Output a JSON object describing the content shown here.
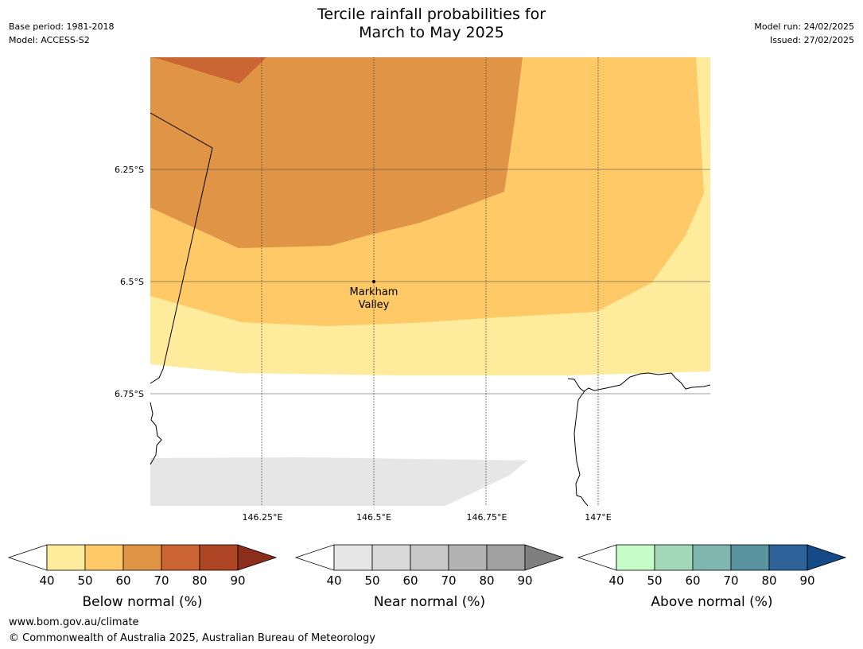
{
  "header": {
    "title_line1": "Tercile rainfall probabilities for",
    "title_line2": "March to May 2025",
    "base_period": "Base period: 1981-2018",
    "model": "Model: ACCESS-S2",
    "model_run": "Model run: 24/02/2025",
    "issued": "Issued: 27/02/2025"
  },
  "map": {
    "place_label_line1": "Markham",
    "place_label_line2": "Valley",
    "lat_labels": [
      "6.25°S",
      "6.5°S",
      "6.75°S"
    ],
    "lon_labels": [
      "146.25°E",
      "146.5°E",
      "146.75°E",
      "147°E"
    ]
  },
  "legends": [
    {
      "title": "Below normal (%)",
      "ticks": [
        "40",
        "50",
        "60",
        "70",
        "80",
        "90"
      ],
      "colors": [
        "#ffeb9c",
        "#fec966",
        "#e09445",
        "#cb6533",
        "#ae4525",
        "#8c2e1c"
      ]
    },
    {
      "title": "Near normal (%)",
      "ticks": [
        "40",
        "50",
        "60",
        "70",
        "80",
        "90"
      ],
      "colors": [
        "#e6e6e6",
        "#d9d9d9",
        "#c8c8c8",
        "#b3b3b3",
        "#a0a0a0",
        "#7f7f7f"
      ]
    },
    {
      "title": "Above normal (%)",
      "ticks": [
        "40",
        "50",
        "60",
        "70",
        "80",
        "90"
      ],
      "colors": [
        "#c8fcc8",
        "#a3d9b9",
        "#7fb7b0",
        "#5994a0",
        "#2e6399",
        "#144a85"
      ]
    }
  ],
  "footer": {
    "url": "www.bom.gov.au/climate",
    "copyright": "© Commonwealth of Australia 2025, Australian Bureau of Meteorology"
  }
}
